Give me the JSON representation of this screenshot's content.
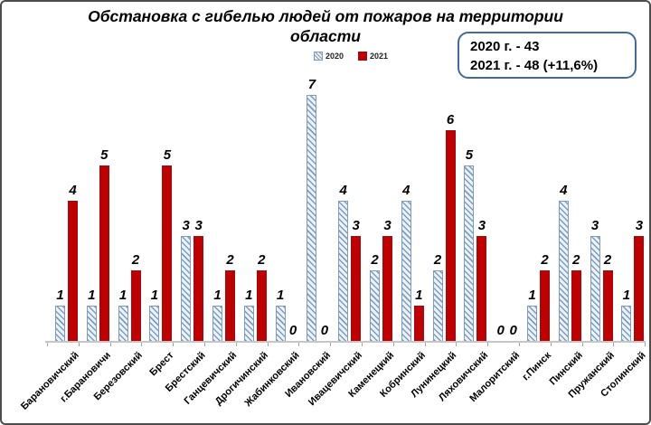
{
  "title": {
    "line1": "Обстановка с гибелью людей от пожаров на территории",
    "line2": "области"
  },
  "legend": {
    "s2020": "2020",
    "s2021": "2021"
  },
  "summary_box": {
    "line1": "2020 г. - 43",
    "line2": "2021 г. - 48 (+11,6%)"
  },
  "colors": {
    "bar_2021": "#c00000",
    "bar_2020_fill": "#eaf1f8",
    "bar_2020_hatch": "#7d9dbe",
    "summary_border": "#44699d",
    "axis": "#c6c6c6"
  },
  "chart_data": {
    "type": "bar",
    "title": "Обстановка с гибелью людей от пожаров на территории области",
    "categories": [
      "Барановичский",
      "г.Барановичи",
      "Березовский",
      "Брест",
      "Брестский",
      "Ганцевичский",
      "Дрогичинский",
      "Жабинковский",
      "Ивановский",
      "Ивацевичский",
      "Каменецкий",
      "Кобринский",
      "Лунинецкий",
      "Ляховичский",
      "Малоритский",
      "г.Пинск",
      "Пинский",
      "Пружанский",
      "Столинский"
    ],
    "series": [
      {
        "name": "2020",
        "values": [
          1,
          1,
          1,
          1,
          3,
          1,
          1,
          1,
          7,
          4,
          2,
          4,
          2,
          5,
          0,
          1,
          4,
          3,
          1
        ]
      },
      {
        "name": "2021",
        "values": [
          4,
          5,
          2,
          5,
          3,
          2,
          2,
          0,
          0,
          3,
          3,
          1,
          6,
          3,
          0,
          2,
          2,
          2,
          3
        ]
      }
    ],
    "totals": {
      "2020": 43,
      "2021": 48,
      "change": "+11,6%"
    },
    "xlabel": "",
    "ylabel": "",
    "ylim": [
      0,
      7
    ],
    "grid": false,
    "legend_position": "top",
    "data_labels": true
  }
}
